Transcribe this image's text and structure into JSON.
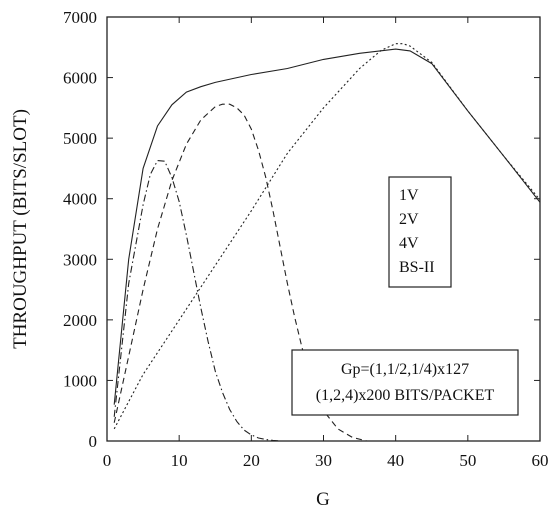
{
  "chart_data": {
    "type": "line",
    "title": "",
    "xlabel": "G",
    "ylabel": "THROUGHPUT (BITS/SLOT)",
    "xlim": [
      0,
      60
    ],
    "ylim": [
      0,
      7000
    ],
    "xticks": [
      0,
      10,
      20,
      30,
      40,
      50,
      60
    ],
    "yticks": [
      0,
      1000,
      2000,
      3000,
      4000,
      5000,
      6000,
      7000
    ],
    "grid": false,
    "legend_position": "right",
    "series": [
      {
        "name": "1V",
        "style": "dash-dot",
        "x": [
          1,
          3,
          5,
          6,
          7,
          8,
          9,
          10,
          11,
          12,
          13,
          14,
          15,
          16,
          17,
          18,
          19,
          20,
          21,
          22,
          23,
          24
        ],
        "y": [
          400,
          2600,
          3900,
          4400,
          4630,
          4620,
          4350,
          3950,
          3400,
          2800,
          2200,
          1650,
          1150,
          800,
          520,
          320,
          180,
          100,
          50,
          25,
          10,
          0
        ]
      },
      {
        "name": "2V",
        "style": "dashed",
        "x": [
          1,
          3,
          5,
          7,
          9,
          11,
          13,
          15,
          16,
          17,
          18,
          19,
          20,
          21,
          22,
          23,
          24,
          25,
          26,
          27,
          28,
          30,
          32,
          34,
          36
        ],
        "y": [
          300,
          1400,
          2500,
          3500,
          4300,
          4900,
          5300,
          5520,
          5560,
          5560,
          5500,
          5380,
          5150,
          4800,
          4350,
          3800,
          3200,
          2600,
          2050,
          1550,
          1100,
          500,
          200,
          60,
          0
        ]
      },
      {
        "name": "4V",
        "style": "dotted",
        "x": [
          1,
          5,
          10,
          15,
          20,
          25,
          30,
          35,
          38,
          40,
          41,
          42,
          45,
          50,
          55,
          60
        ],
        "y": [
          200,
          1100,
          2000,
          2900,
          3800,
          4750,
          5500,
          6150,
          6450,
          6560,
          6560,
          6520,
          6250,
          5450,
          4700,
          3980
        ]
      },
      {
        "name": "BS-II",
        "style": "solid",
        "x": [
          1,
          3,
          5,
          7,
          9,
          11,
          13,
          15,
          20,
          25,
          30,
          35,
          40,
          42,
          45,
          50,
          55,
          60
        ],
        "y": [
          600,
          3000,
          4500,
          5200,
          5550,
          5760,
          5850,
          5920,
          6050,
          6150,
          6300,
          6400,
          6470,
          6440,
          6230,
          5450,
          4700,
          3940
        ]
      }
    ],
    "annotations": [
      "Gp=(1,1/2,1/4)x127",
      "(1,2,4)x200 BITS/PACKET"
    ]
  }
}
